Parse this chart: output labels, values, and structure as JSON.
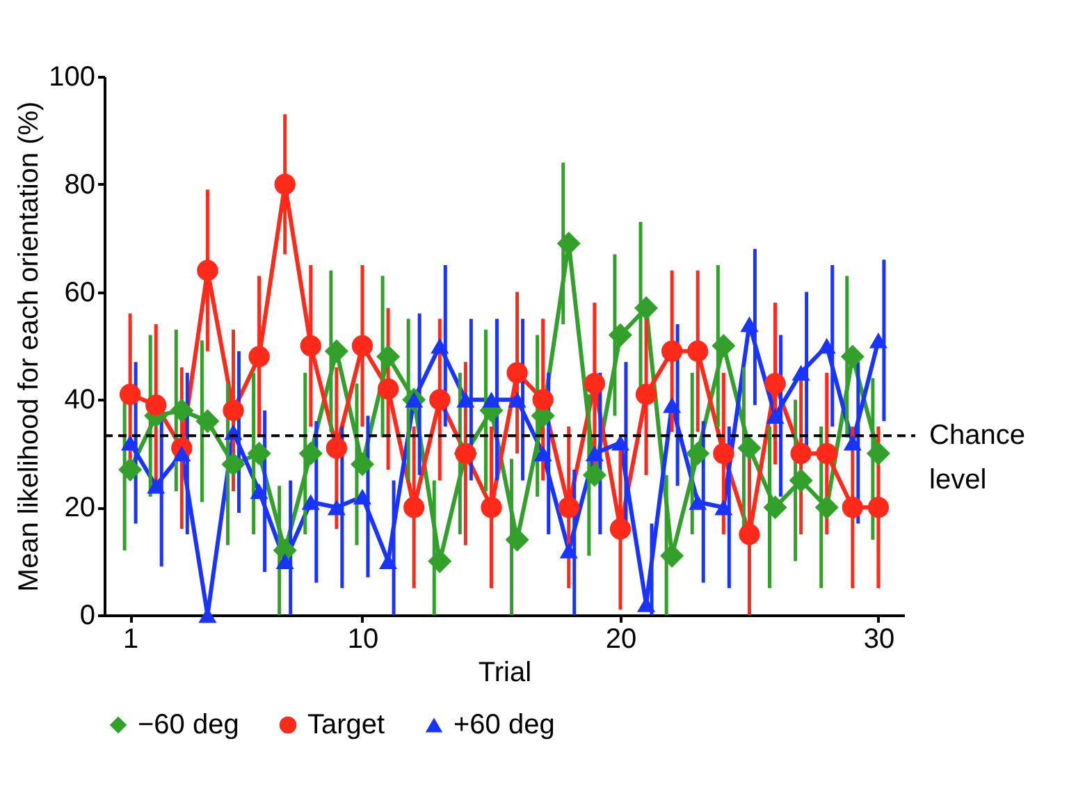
{
  "chart_data": {
    "type": "line",
    "xlabel": "Trial",
    "ylabel": "Mean likelihood for each orientation (%)",
    "x": [
      1,
      2,
      3,
      4,
      5,
      6,
      7,
      8,
      9,
      10,
      11,
      12,
      13,
      14,
      15,
      16,
      17,
      18,
      19,
      20,
      21,
      22,
      23,
      24,
      25,
      26,
      27,
      28,
      29,
      30
    ],
    "xlim": [
      0,
      31
    ],
    "xticks": [
      1,
      10,
      20,
      30
    ],
    "ylim": [
      0,
      100
    ],
    "yticks": [
      0,
      20,
      40,
      60,
      80,
      100
    ],
    "series": [
      {
        "name": "−60 deg",
        "color": "#33a02c",
        "marker": "diamond",
        "values": [
          27,
          37,
          38,
          36,
          28,
          30,
          12,
          30,
          49,
          28,
          48,
          40,
          10,
          30,
          38,
          14,
          37,
          69,
          26,
          52,
          57,
          11,
          30,
          50,
          31,
          20,
          25,
          20,
          48,
          30
        ],
        "errors": [
          [
            12,
            42
          ],
          [
            22,
            52
          ],
          [
            23,
            53
          ],
          [
            21,
            51
          ],
          [
            13,
            43
          ],
          [
            15,
            45
          ],
          [
            0,
            24
          ],
          [
            15,
            45
          ],
          [
            34,
            64
          ],
          [
            13,
            43
          ],
          [
            33,
            63
          ],
          [
            25,
            55
          ],
          [
            0,
            25
          ],
          [
            15,
            45
          ],
          [
            23,
            53
          ],
          [
            0,
            29
          ],
          [
            22,
            52
          ],
          [
            54,
            84
          ],
          [
            11,
            41
          ],
          [
            37,
            67
          ],
          [
            42,
            73
          ],
          [
            0,
            26
          ],
          [
            15,
            45
          ],
          [
            35,
            65
          ],
          [
            16,
            46
          ],
          [
            5,
            35
          ],
          [
            10,
            40
          ],
          [
            5,
            35
          ],
          [
            33,
            63
          ],
          [
            14,
            44
          ]
        ]
      },
      {
        "name": "Target",
        "color": "#ff2a1a",
        "marker": "circle",
        "values": [
          41,
          39,
          31,
          64,
          38,
          48,
          80,
          50,
          31,
          50,
          42,
          20,
          40,
          30,
          20,
          45,
          40,
          20,
          43,
          16,
          41,
          49,
          49,
          30,
          15,
          43,
          30,
          30,
          20,
          20
        ],
        "errors": [
          [
            26,
            56
          ],
          [
            24,
            54
          ],
          [
            16,
            46
          ],
          [
            49,
            79
          ],
          [
            23,
            53
          ],
          [
            33,
            63
          ],
          [
            67,
            93
          ],
          [
            35,
            65
          ],
          [
            16,
            46
          ],
          [
            35,
            65
          ],
          [
            27,
            57
          ],
          [
            5,
            35
          ],
          [
            25,
            55
          ],
          [
            13,
            47
          ],
          [
            5,
            35
          ],
          [
            30,
            60
          ],
          [
            25,
            55
          ],
          [
            5,
            35
          ],
          [
            28,
            58
          ],
          [
            1,
            31
          ],
          [
            26,
            56
          ],
          [
            34,
            64
          ],
          [
            34,
            64
          ],
          [
            15,
            45
          ],
          [
            0,
            30
          ],
          [
            28,
            58
          ],
          [
            15,
            45
          ],
          [
            15,
            45
          ],
          [
            5,
            35
          ],
          [
            5,
            35
          ]
        ]
      },
      {
        "name": "+60 deg",
        "color": "#1a34ff",
        "marker": "triangle",
        "values": [
          32,
          24,
          30,
          0,
          34,
          23,
          10,
          21,
          20,
          22,
          10,
          40,
          50,
          40,
          40,
          40,
          30,
          12,
          30,
          32,
          2,
          39,
          21,
          20,
          54,
          37,
          45,
          50,
          32,
          51
        ],
        "errors": [
          [
            17,
            47
          ],
          [
            9,
            39
          ],
          [
            15,
            45
          ],
          null,
          [
            19,
            49
          ],
          [
            8,
            38
          ],
          [
            0,
            25
          ],
          [
            6,
            36
          ],
          [
            5,
            35
          ],
          [
            7,
            37
          ],
          [
            0,
            25
          ],
          [
            26,
            56
          ],
          [
            35,
            65
          ],
          [
            25,
            55
          ],
          [
            25,
            55
          ],
          [
            25,
            55
          ],
          [
            15,
            45
          ],
          [
            0,
            27
          ],
          [
            15,
            45
          ],
          [
            17,
            47
          ],
          [
            0,
            17
          ],
          [
            24,
            54
          ],
          [
            6,
            36
          ],
          [
            5,
            35
          ],
          [
            39,
            68
          ],
          [
            22,
            52
          ],
          [
            30,
            60
          ],
          [
            35,
            65
          ],
          [
            17,
            47
          ],
          [
            36,
            66
          ]
        ]
      }
    ],
    "ref_lines": [
      {
        "axis": "y",
        "value": 33.3,
        "label": "Chance level",
        "line_style": "dashed",
        "color": "#000000"
      }
    ],
    "legend": "bottom",
    "grid": false,
    "line_style": "solid"
  }
}
